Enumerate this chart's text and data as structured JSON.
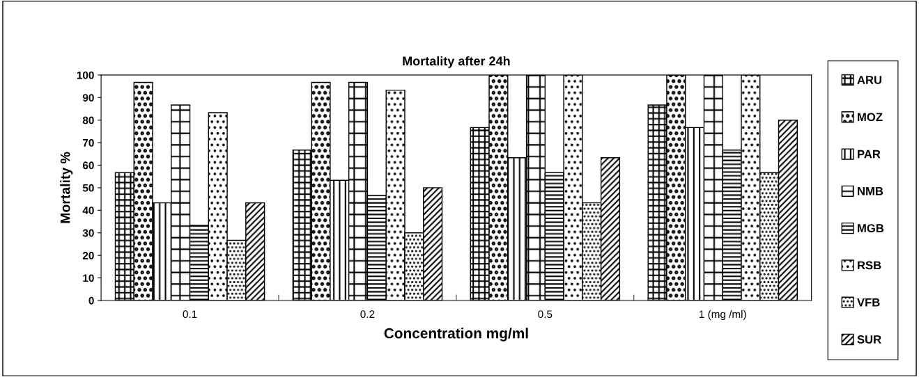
{
  "chart_data": {
    "type": "bar",
    "title": "Mortality after 24h",
    "xlabel": "Concentration mg/ml",
    "ylabel": "Mortality %",
    "categories": [
      "0.1",
      "0.2",
      "0.5",
      "1 (mg /ml)"
    ],
    "series": [
      {
        "name": "ARU",
        "color": "#000000",
        "values": [
          56.7,
          66.7,
          76.7,
          86.7
        ]
      },
      {
        "name": "MOZ",
        "color": "#000000",
        "values": [
          96.7,
          96.7,
          100,
          100
        ]
      },
      {
        "name": "PAR",
        "color": "#000000",
        "values": [
          43.3,
          53.3,
          63.3,
          76.7
        ]
      },
      {
        "name": "NMB",
        "color": "#000000",
        "values": [
          86.7,
          96.7,
          100,
          100
        ]
      },
      {
        "name": "MGB",
        "color": "#000000",
        "values": [
          33.3,
          46.7,
          56.7,
          66.7
        ]
      },
      {
        "name": "RSB",
        "color": "#000000",
        "values": [
          83.3,
          93.3,
          100,
          100
        ]
      },
      {
        "name": "VFB",
        "color": "#000000",
        "values": [
          26.7,
          30,
          43.3,
          56.7
        ]
      },
      {
        "name": "SUR",
        "color": "#000000",
        "values": [
          43.3,
          50,
          63.3,
          80
        ]
      }
    ],
    "ylim": [
      0,
      100
    ],
    "yticks": [
      0,
      10,
      20,
      30,
      40,
      50,
      60,
      70,
      80,
      90,
      100
    ],
    "grid": false,
    "legend": "right"
  }
}
